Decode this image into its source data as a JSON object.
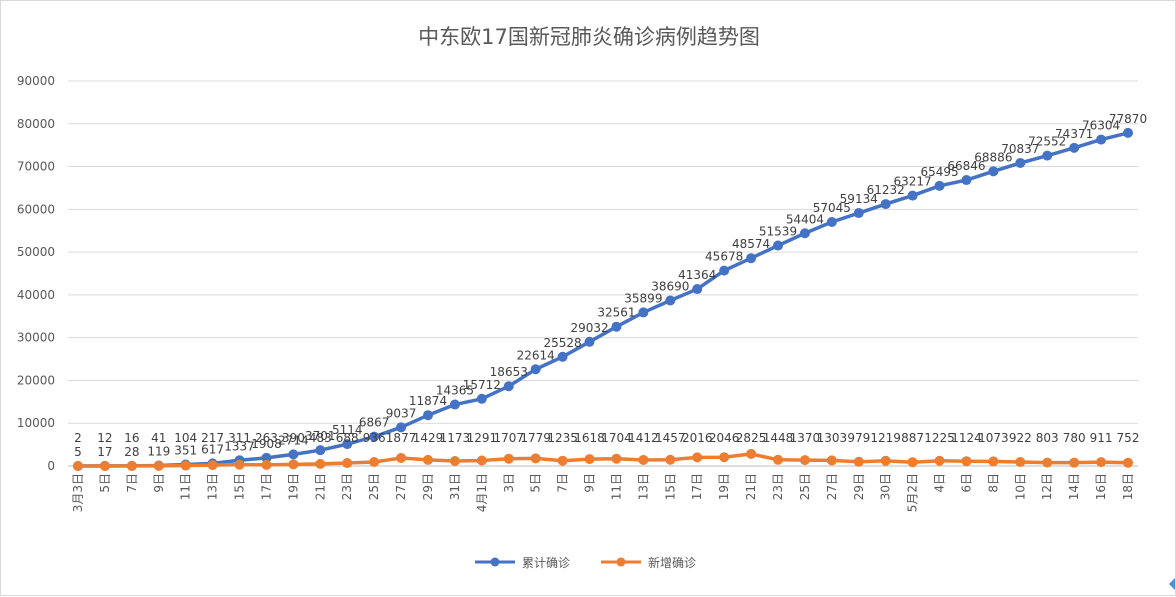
{
  "chart_data": {
    "type": "line",
    "title": "中东欧17国新冠肺炎确诊病例趋势图",
    "categories": [
      "3月3日",
      "5日",
      "7日",
      "9日",
      "11日",
      "13日",
      "15日",
      "17日",
      "19日",
      "21日",
      "23日",
      "25日",
      "27日",
      "29日",
      "31日",
      "4月1日",
      "3日",
      "5日",
      "7日",
      "9日",
      "11日",
      "13日",
      "15日",
      "17日",
      "19日",
      "21日",
      "23日",
      "25日",
      "27日",
      "29日",
      "30日",
      "5月2日",
      "4日",
      "6日",
      "8日",
      "10日",
      "12日",
      "14日",
      "16日",
      "18日"
    ],
    "ylim": [
      0,
      90000
    ],
    "yticks": [
      "0",
      "10000",
      "20000",
      "30000",
      "40000",
      "50000",
      "60000",
      "70000",
      "80000",
      "90000"
    ],
    "series": [
      {
        "name": "累计确诊",
        "color": "#4472c4",
        "values": [
          5,
          17,
          28,
          119,
          351,
          617,
          1337,
          1908,
          2714,
          3701,
          5114,
          6867,
          9037,
          11874,
          14365,
          15712,
          18653,
          22614,
          25528,
          29032,
          32561,
          35899,
          38690,
          41364,
          45678,
          48574,
          51539,
          54404,
          57045,
          59134,
          61232,
          63217,
          65495,
          66846,
          68886,
          70837,
          72552,
          74371,
          76304,
          77870
        ]
      },
      {
        "name": "新增确诊",
        "color": "#ed7d31",
        "values": [
          2,
          12,
          16,
          41,
          104,
          217,
          311,
          263,
          390,
          483,
          688,
          936,
          1877,
          1429,
          1173,
          1291,
          1707,
          1779,
          1235,
          1618,
          1704,
          1412,
          1457,
          2016,
          2046,
          2825,
          1448,
          1370,
          1303,
          979,
          1219,
          887,
          1225,
          1124,
          1073,
          922,
          803,
          780,
          911,
          752
        ]
      }
    ],
    "grid": "horizontal",
    "legend_position": "bottom"
  }
}
